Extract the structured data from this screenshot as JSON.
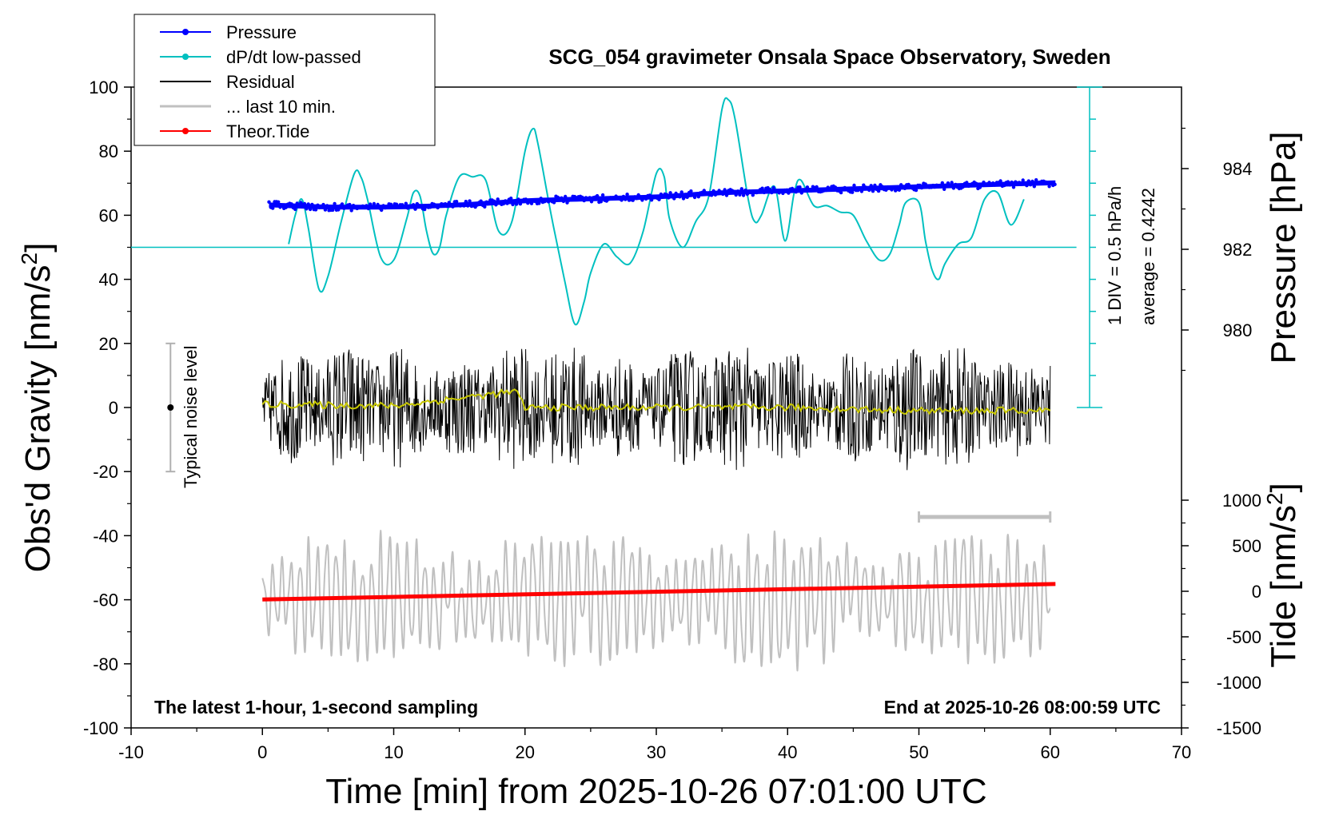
{
  "chart_data": {
    "type": "line",
    "title": "SCG_054 gravimeter Onsala Space Observatory, Sweden",
    "xlabel": "Time [min] from 2025-10-26 07:01:00 UTC",
    "ylabel_left_main": "Obs'd Gravity [nm/s",
    "ylabel_left_sup": "2",
    "ylabel_left_end": "]",
    "ylabel_right_top": "Pressure [hPa]",
    "ylabel_right_bottom_main": "Tide [nm/s",
    "ylabel_right_bottom_sup": "2",
    "ylabel_right_bottom_end": "]",
    "xlim": [
      -10,
      70
    ],
    "ylim": [
      -100,
      100
    ],
    "x_ticks": [
      "-10",
      "0",
      "10",
      "20",
      "30",
      "40",
      "50",
      "60",
      "70"
    ],
    "x_tick_values": [
      -10,
      0,
      10,
      20,
      30,
      40,
      50,
      60,
      70
    ],
    "y_ticks": [
      "-100",
      "-80",
      "-60",
      "-40",
      "-20",
      "0",
      "20",
      "40",
      "60",
      "80",
      "100"
    ],
    "y_tick_values": [
      -100,
      -80,
      -60,
      -40,
      -20,
      0,
      20,
      40,
      60,
      80,
      100
    ],
    "pressure_axis": {
      "ticks": [
        "980",
        "982",
        "984"
      ],
      "tick_values": [
        980,
        982,
        984
      ],
      "ylim": [
        978,
        986
      ]
    },
    "tide_axis": {
      "ticks": [
        "-1500",
        "-1000",
        "-500",
        "0",
        "500",
        "1000"
      ],
      "tick_values": [
        -1500,
        -1000,
        -500,
        0,
        500,
        1000
      ],
      "ylim": [
        -1500,
        1500
      ]
    },
    "scale_bar": {
      "label_1": "1 DIV = 0.5 hPa/h",
      "label_2": "average = 0.4242",
      "x": 63,
      "divisions": 10
    },
    "noise_bar": {
      "label": "Typical noise level",
      "x": -7,
      "center": 0,
      "half_range": 20
    },
    "last10_bar": {
      "x_start": 50,
      "x_end": 60
    },
    "bottom_left_note": "The latest 1-hour, 1-second sampling",
    "bottom_right_note": "End at 2025-10-26 08:00:59 UTC",
    "legend": [
      {
        "label": "Pressure",
        "color": "#0000ff",
        "marker": true
      },
      {
        "label": "dP/dt low-passed",
        "color": "#00c0c0",
        "marker": true
      },
      {
        "label": "Residual",
        "color": "#000000",
        "marker": false
      },
      {
        "label": "... last 10 min.",
        "color": "#c0c0c0",
        "marker": false
      },
      {
        "label": "Theor.Tide",
        "color": "#ff0000",
        "marker": true
      }
    ],
    "series": [
      {
        "name": "Pressure",
        "axis": "pressure",
        "color": "#0000ff",
        "x": [
          0.5,
          5,
          10,
          15,
          20,
          25,
          30,
          35,
          40,
          45,
          50,
          55,
          60.4
        ],
        "values": [
          983.1,
          983.05,
          983.05,
          983.1,
          983.2,
          983.25,
          983.3,
          983.4,
          983.45,
          983.5,
          983.55,
          983.6,
          983.65
        ]
      },
      {
        "name": "dP/dt low-passed",
        "axis": "gravity",
        "color": "#00c0c0",
        "x": [
          2,
          2.5,
          3,
          3.5,
          4.3,
          5,
          6,
          7,
          7.5,
          8,
          9,
          10,
          11,
          11.5,
          12,
          12.5,
          13,
          13.5,
          14,
          15,
          16,
          17,
          18,
          19,
          20,
          20.6,
          21,
          22,
          23,
          23.8,
          24.5,
          25,
          26,
          27,
          28,
          29,
          30,
          30.6,
          31,
          32,
          33,
          34,
          35,
          35.5,
          36,
          37,
          37.5,
          38,
          39,
          39.8,
          40.5,
          41,
          42,
          43,
          44,
          45,
          46,
          47,
          47.8,
          48.5,
          49,
          50,
          50.5,
          51,
          51.5,
          52,
          53,
          54,
          55,
          56,
          57,
          58
        ],
        "values": [
          51,
          60,
          65,
          56,
          37,
          41,
          58,
          73,
          72,
          65,
          47,
          46,
          59,
          67,
          66,
          55,
          48,
          50,
          60,
          72,
          72,
          71,
          55,
          58,
          80,
          87,
          82,
          60,
          40,
          26,
          33,
          42,
          51,
          47,
          45,
          55,
          73,
          72,
          59,
          50,
          58,
          66,
          93,
          96,
          90,
          65,
          58,
          60,
          69,
          52,
          67,
          71,
          63,
          63,
          61,
          60,
          52,
          46,
          48,
          57,
          64,
          64,
          52,
          43,
          40,
          45,
          51,
          53,
          65,
          67,
          57,
          65
        ]
      },
      {
        "name": "Residual",
        "axis": "gravity",
        "color": "#000000",
        "x_start": 0,
        "x_end": 60,
        "noise_envelope": 15,
        "min": -24,
        "max": 25
      },
      {
        "name": "Residual smoothed",
        "axis": "gravity",
        "color": "#c8c800",
        "x": [
          0,
          10,
          19.3,
          20,
          30,
          40,
          50,
          60
        ],
        "values": [
          1,
          0.5,
          5,
          0,
          0,
          0,
          -1,
          -1
        ]
      },
      {
        "name": "... last 10 min.",
        "axis": "gravity",
        "color": "#c0c0c0",
        "x_start": 0,
        "x_end": 60,
        "center": -60,
        "min": -83,
        "max": -37
      },
      {
        "name": "Theor.Tide",
        "axis": "tide",
        "color": "#ff0000",
        "x": [
          0,
          60.4
        ],
        "values": [
          -90,
          80
        ]
      }
    ]
  }
}
